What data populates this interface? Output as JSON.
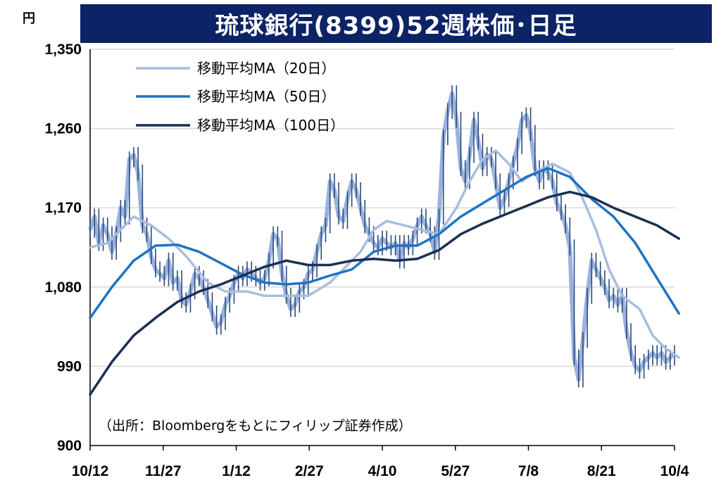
{
  "chart_data": {
    "type": "line",
    "title": "琉球銀行(8399)52週株価･日足",
    "unit_label": "円",
    "ylim": [
      900,
      1350
    ],
    "yticks": [
      900,
      990,
      1080,
      1170,
      1260,
      1350
    ],
    "ytick_labels": [
      "900",
      "990",
      "1,080",
      "1,170",
      "1,260",
      "1,350"
    ],
    "xtick_labels": [
      "10/12",
      "11/27",
      "1/12",
      "2/27",
      "4/10",
      "5/27",
      "7/8",
      "8/21",
      "10/4"
    ],
    "grid": "horizontal",
    "legend_position": "top-left",
    "source": "（出所：Bloombergをもとにフィリップ証券作成）",
    "price_series": {
      "name": "",
      "color": "#2b4b7c",
      "highlight_color": "#8eaadb",
      "values": [
        1145,
        1160,
        1130,
        1150,
        1140,
        1120,
        1140,
        1170,
        1160,
        1225,
        1230,
        1210,
        1150,
        1140,
        1115,
        1100,
        1095,
        1090,
        1110,
        1085,
        1090,
        1065,
        1060,
        1075,
        1095,
        1090,
        1080,
        1065,
        1050,
        1035,
        1040,
        1060,
        1070,
        1085,
        1095,
        1090,
        1100,
        1095,
        1090,
        1085,
        1090,
        1110,
        1140,
        1135,
        1095,
        1070,
        1055,
        1060,
        1075,
        1080,
        1095,
        1100,
        1120,
        1140,
        1150,
        1200,
        1190,
        1160,
        1155,
        1180,
        1200,
        1190,
        1170,
        1150,
        1140,
        1130,
        1125,
        1135,
        1130,
        1125,
        1130,
        1110,
        1130,
        1125,
        1135,
        1150,
        1160,
        1150,
        1140,
        1120,
        1160,
        1250,
        1280,
        1300,
        1270,
        1215,
        1200,
        1230,
        1270,
        1245,
        1215,
        1230,
        1225,
        1200,
        1170,
        1180,
        1200,
        1220,
        1240,
        1270,
        1275,
        1255,
        1215,
        1200,
        1215,
        1210,
        1200,
        1175,
        1165,
        1150,
        1125,
        1000,
        975,
        1020,
        1070,
        1110,
        1100,
        1090,
        1080,
        1065,
        1070,
        1060,
        1070,
        1030,
        1005,
        990,
        985,
        995,
        1000,
        1005,
        1000,
        1005,
        995,
        1000,
        1005
      ]
    },
    "series": [
      {
        "name": "移動平均MA（20日）",
        "color": "#a8bedf",
        "points": [
          [
            0,
            1125
          ],
          [
            4,
            1130
          ],
          [
            8,
            1150
          ],
          [
            10,
            1160
          ],
          [
            14,
            1150
          ],
          [
            18,
            1135
          ],
          [
            22,
            1115
          ],
          [
            27,
            1085
          ],
          [
            31,
            1075
          ],
          [
            36,
            1075
          ],
          [
            40,
            1070
          ],
          [
            44,
            1070
          ],
          [
            50,
            1070
          ],
          [
            55,
            1085
          ],
          [
            58,
            1100
          ],
          [
            62,
            1120
          ],
          [
            65,
            1145
          ],
          [
            68,
            1155
          ],
          [
            72,
            1150
          ],
          [
            76,
            1145
          ],
          [
            80,
            1140
          ],
          [
            84,
            1170
          ],
          [
            87,
            1200
          ],
          [
            90,
            1225
          ],
          [
            93,
            1235
          ],
          [
            96,
            1220
          ],
          [
            99,
            1200
          ],
          [
            102,
            1210
          ],
          [
            106,
            1220
          ],
          [
            110,
            1210
          ],
          [
            113,
            1180
          ],
          [
            116,
            1145
          ],
          [
            119,
            1100
          ],
          [
            122,
            1070
          ],
          [
            126,
            1055
          ],
          [
            129,
            1025
          ],
          [
            132,
            1010
          ],
          [
            135,
            1000
          ]
        ]
      },
      {
        "name": "移動平均MA（50日）",
        "color": "#1f73c1",
        "points": [
          [
            0,
            1045
          ],
          [
            5,
            1080
          ],
          [
            10,
            1110
          ],
          [
            15,
            1127
          ],
          [
            20,
            1128
          ],
          [
            25,
            1120
          ],
          [
            30,
            1107
          ],
          [
            35,
            1094
          ],
          [
            40,
            1085
          ],
          [
            45,
            1083
          ],
          [
            50,
            1085
          ],
          [
            55,
            1093
          ],
          [
            60,
            1100
          ],
          [
            65,
            1120
          ],
          [
            70,
            1127
          ],
          [
            75,
            1127
          ],
          [
            80,
            1140
          ],
          [
            85,
            1160
          ],
          [
            90,
            1175
          ],
          [
            95,
            1190
          ],
          [
            100,
            1205
          ],
          [
            105,
            1215
          ],
          [
            110,
            1205
          ],
          [
            115,
            1180
          ],
          [
            120,
            1160
          ],
          [
            125,
            1130
          ],
          [
            130,
            1090
          ],
          [
            135,
            1050
          ]
        ]
      },
      {
        "name": "移動平均MA（100日）",
        "color": "#1b2f52",
        "points": [
          [
            0,
            958
          ],
          [
            5,
            995
          ],
          [
            10,
            1025
          ],
          [
            15,
            1045
          ],
          [
            20,
            1063
          ],
          [
            25,
            1075
          ],
          [
            30,
            1083
          ],
          [
            35,
            1093
          ],
          [
            40,
            1103
          ],
          [
            45,
            1110
          ],
          [
            50,
            1105
          ],
          [
            55,
            1105
          ],
          [
            60,
            1110
          ],
          [
            65,
            1112
          ],
          [
            70,
            1110
          ],
          [
            75,
            1112
          ],
          [
            80,
            1122
          ],
          [
            85,
            1140
          ],
          [
            90,
            1152
          ],
          [
            95,
            1162
          ],
          [
            100,
            1172
          ],
          [
            105,
            1182
          ],
          [
            110,
            1188
          ],
          [
            115,
            1182
          ],
          [
            120,
            1170
          ],
          [
            125,
            1160
          ],
          [
            130,
            1150
          ],
          [
            135,
            1135
          ]
        ]
      }
    ]
  }
}
